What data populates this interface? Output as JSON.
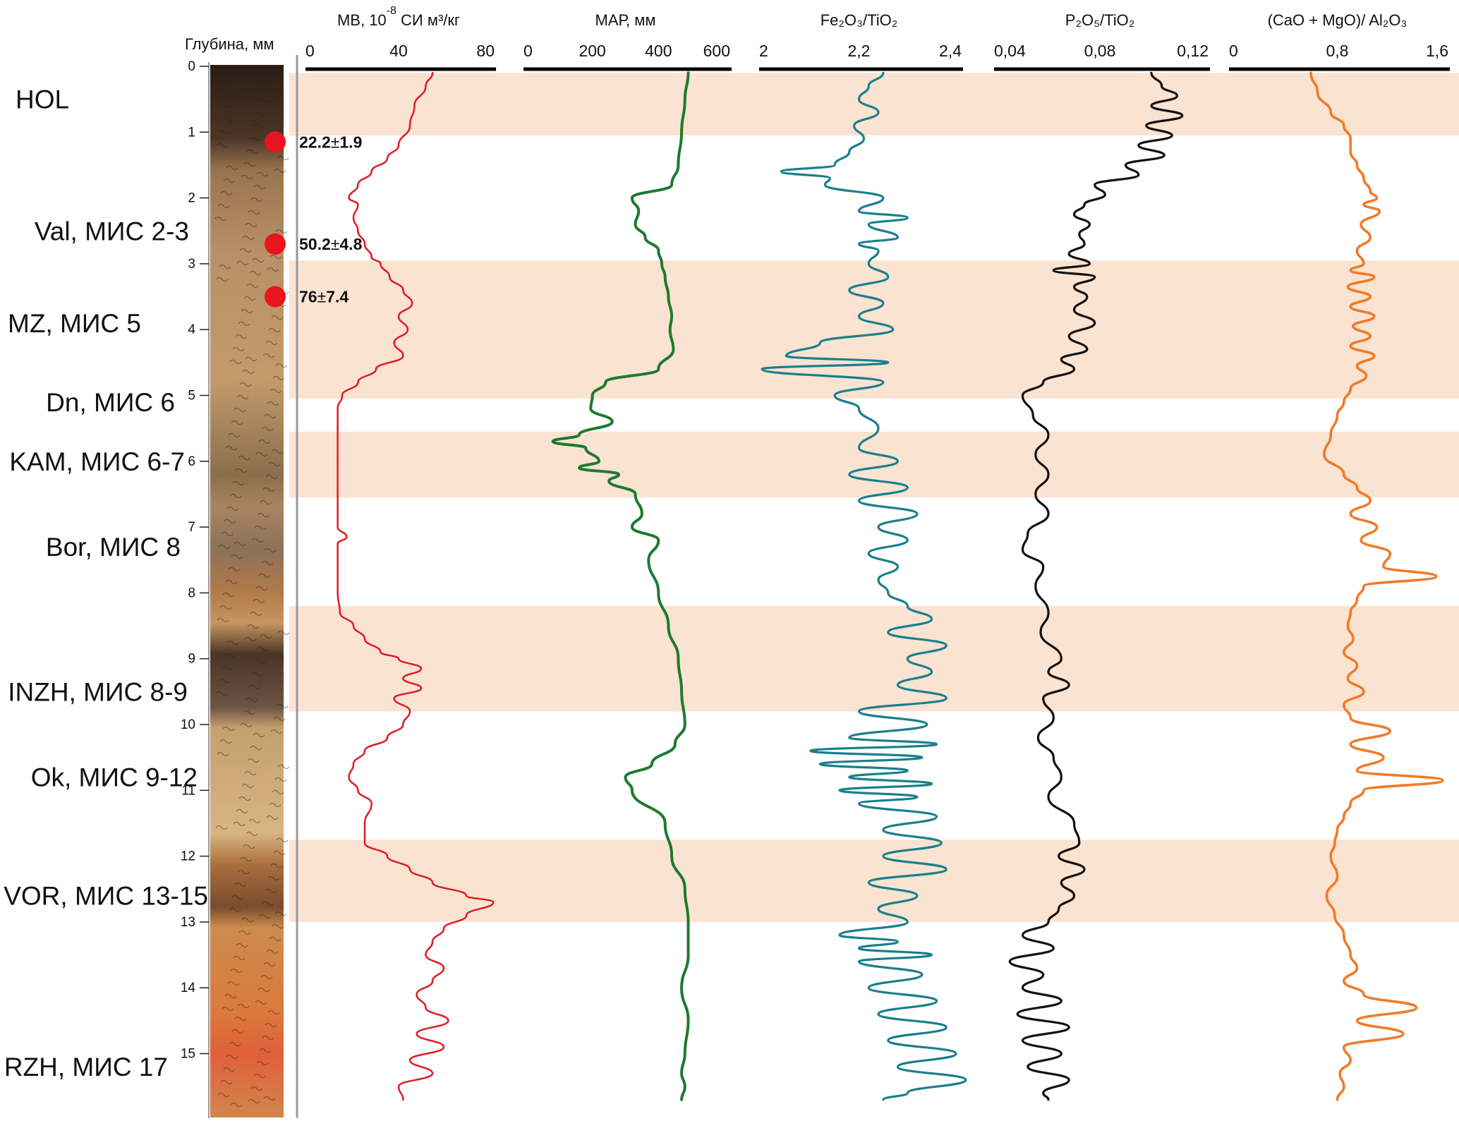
{
  "chart_data": {
    "type": "line",
    "title": "",
    "depth_axis": {
      "label": "Глубина, мм",
      "ticks": [
        "0",
        "1",
        "2",
        "3",
        "4",
        "5",
        "6",
        "7",
        "8",
        "9",
        "10",
        "11",
        "12",
        "13",
        "14",
        "15"
      ],
      "range": [
        0,
        15.8
      ]
    },
    "stages": [
      {
        "label": "HOL",
        "depth": 0.5
      },
      {
        "label": "Val, МИС 2-3",
        "depth": 2.5
      },
      {
        "label": "MZ, МИС 5",
        "depth": 3.9
      },
      {
        "label": "Dn, МИС 6",
        "depth": 5.1
      },
      {
        "label": "KAM, МИС 6-7",
        "depth": 6.0
      },
      {
        "label": "Bor, МИС 8",
        "depth": 7.3
      },
      {
        "label": "INZH, МИС 8-9",
        "depth": 9.5
      },
      {
        "label": "Ok, МИС 9-12",
        "depth": 10.8
      },
      {
        "label": "VOR, МИС 13-15",
        "depth": 12.6
      },
      {
        "label": "RZH, МИС 17",
        "depth": 15.2
      }
    ],
    "shaded_depth_bands": [
      [
        0.1,
        1.05
      ],
      [
        2.95,
        5.05
      ],
      [
        5.55,
        6.55
      ],
      [
        8.2,
        9.8
      ],
      [
        11.75,
        13.0
      ]
    ],
    "ages": [
      {
        "value": "22.2",
        "error": "1.9",
        "pm": "±",
        "depth": 1.15
      },
      {
        "value": "50.2",
        "error": "4.8",
        "pm": "±",
        "depth": 2.7
      },
      {
        "value": "76",
        "error": "7.4",
        "pm": "±",
        "depth": 3.5
      }
    ],
    "series": [
      {
        "name": "MB",
        "title_main": "МВ, 10",
        "title_sup": "-8",
        "title_rest": " СИ м³/кг",
        "color": "#e01b24",
        "xlim": [
          0,
          80
        ],
        "tick_labels": [
          "0",
          "40",
          "80"
        ],
        "tick_values": [
          0,
          40,
          80
        ],
        "depth": [
          0.1,
          0.3,
          0.6,
          0.9,
          1.2,
          1.4,
          1.6,
          1.8,
          2.0,
          2.1,
          2.3,
          2.5,
          2.7,
          2.9,
          3.0,
          3.2,
          3.4,
          3.6,
          3.8,
          4.0,
          4.2,
          4.4,
          4.6,
          4.8,
          5.0,
          5.2,
          5.5,
          6.0,
          6.5,
          7.0,
          7.15,
          7.25,
          7.5,
          8.0,
          8.3,
          8.5,
          8.7,
          8.9,
          9.0,
          9.15,
          9.3,
          9.45,
          9.6,
          9.8,
          10.0,
          10.2,
          10.4,
          10.6,
          10.8,
          11.0,
          11.2,
          11.5,
          11.8,
          12.0,
          12.2,
          12.4,
          12.6,
          12.7,
          12.9,
          13.1,
          13.3,
          13.5,
          13.7,
          13.9,
          14.1,
          14.3,
          14.5,
          14.7,
          14.9,
          15.1,
          15.3,
          15.5,
          15.7
        ],
        "values": [
          55,
          52,
          47,
          45,
          40,
          35,
          28,
          22,
          18,
          22,
          20,
          22,
          25,
          28,
          32,
          36,
          42,
          46,
          40,
          44,
          38,
          42,
          30,
          22,
          15,
          13,
          13,
          13,
          13,
          13,
          17,
          13,
          13,
          13,
          14,
          20,
          25,
          32,
          40,
          50,
          42,
          50,
          38,
          45,
          42,
          35,
          25,
          20,
          18,
          22,
          28,
          25,
          25,
          35,
          45,
          55,
          70,
          82,
          70,
          60,
          55,
          52,
          60,
          55,
          48,
          52,
          62,
          48,
          60,
          45,
          55,
          40,
          42
        ]
      },
      {
        "name": "MAP",
        "title_main": "МАР, мм",
        "color": "#1d7a2e",
        "xlim": [
          0,
          600
        ],
        "tick_labels": [
          "0",
          "200",
          "400",
          "600"
        ],
        "tick_values": [
          0,
          200,
          400,
          600
        ],
        "depth": [
          0.1,
          0.5,
          1.0,
          1.5,
          1.8,
          2.0,
          2.2,
          2.4,
          2.6,
          2.8,
          3.0,
          3.2,
          3.5,
          3.8,
          4.0,
          4.3,
          4.6,
          4.8,
          5.0,
          5.2,
          5.4,
          5.6,
          5.7,
          5.8,
          6.0,
          6.1,
          6.2,
          6.3,
          6.5,
          6.8,
          7.0,
          7.2,
          7.5,
          8.0,
          8.5,
          9.0,
          9.5,
          10.0,
          10.3,
          10.6,
          10.8,
          11.0,
          11.5,
          12.0,
          12.5,
          13.0,
          13.5,
          14.0,
          14.5,
          15.0,
          15.3,
          15.5,
          15.7
        ],
        "values": [
          490,
          480,
          470,
          460,
          440,
          320,
          340,
          330,
          360,
          400,
          410,
          420,
          430,
          440,
          435,
          445,
          400,
          240,
          200,
          195,
          260,
          160,
          80,
          180,
          220,
          160,
          280,
          250,
          330,
          350,
          320,
          400,
          370,
          400,
          430,
          460,
          470,
          480,
          450,
          380,
          300,
          320,
          420,
          440,
          480,
          490,
          490,
          470,
          490,
          480,
          470,
          480,
          470
        ]
      },
      {
        "name": "Fe2O3/TiO2",
        "title_main": "Fe₂O₃/TiO₂",
        "color": "#1a7f8c",
        "xlim": [
          2.0,
          2.4
        ],
        "tick_labels": [
          "2",
          "2,2",
          "2,4"
        ],
        "tick_values": [
          2.0,
          2.2,
          2.4
        ],
        "depth": [
          0.1,
          0.3,
          0.5,
          0.7,
          0.9,
          1.1,
          1.3,
          1.5,
          1.6,
          1.7,
          1.8,
          2.0,
          2.2,
          2.3,
          2.4,
          2.6,
          2.7,
          2.8,
          3.0,
          3.2,
          3.4,
          3.6,
          3.8,
          4.0,
          4.2,
          4.4,
          4.5,
          4.6,
          4.8,
          5.0,
          5.2,
          5.5,
          5.8,
          6.0,
          6.2,
          6.4,
          6.6,
          6.8,
          7.0,
          7.2,
          7.4,
          7.6,
          7.8,
          8.0,
          8.2,
          8.4,
          8.6,
          8.8,
          9.0,
          9.2,
          9.4,
          9.6,
          9.8,
          10.0,
          10.2,
          10.3,
          10.4,
          10.5,
          10.6,
          10.7,
          10.8,
          10.9,
          11.0,
          11.1,
          11.2,
          11.4,
          11.6,
          11.8,
          12.0,
          12.2,
          12.4,
          12.6,
          12.8,
          13.0,
          13.2,
          13.3,
          13.4,
          13.5,
          13.6,
          13.8,
          14.0,
          14.2,
          14.4,
          14.6,
          14.8,
          15.0,
          15.2,
          15.4,
          15.6,
          15.7
        ],
        "values": [
          2.25,
          2.22,
          2.2,
          2.24,
          2.19,
          2.21,
          2.18,
          2.15,
          2.04,
          2.14,
          2.13,
          2.25,
          2.2,
          2.3,
          2.22,
          2.28,
          2.2,
          2.24,
          2.22,
          2.26,
          2.18,
          2.25,
          2.2,
          2.27,
          2.12,
          2.05,
          2.26,
          2.0,
          2.25,
          2.15,
          2.2,
          2.24,
          2.2,
          2.28,
          2.18,
          2.3,
          2.2,
          2.32,
          2.24,
          2.3,
          2.22,
          2.28,
          2.24,
          2.26,
          2.3,
          2.35,
          2.26,
          2.38,
          2.3,
          2.35,
          2.28,
          2.38,
          2.2,
          2.34,
          2.18,
          2.36,
          2.1,
          2.33,
          2.12,
          2.3,
          2.18,
          2.35,
          2.16,
          2.32,
          2.2,
          2.36,
          2.25,
          2.37,
          2.25,
          2.38,
          2.22,
          2.32,
          2.24,
          2.3,
          2.16,
          2.28,
          2.2,
          2.35,
          2.2,
          2.33,
          2.22,
          2.36,
          2.24,
          2.38,
          2.26,
          2.4,
          2.28,
          2.42,
          2.3,
          2.25
        ]
      },
      {
        "name": "P2O5/TiO2",
        "title_main": "P₂O₅/TiO₂",
        "color": "#111111",
        "xlim": [
          0.04,
          0.12
        ],
        "tick_labels": [
          "0,04",
          "0,08",
          "0,12"
        ],
        "tick_values": [
          0.04,
          0.08,
          0.12
        ],
        "depth": [
          0.1,
          0.3,
          0.45,
          0.6,
          0.75,
          0.9,
          1.05,
          1.2,
          1.35,
          1.5,
          1.65,
          1.8,
          1.95,
          2.1,
          2.25,
          2.4,
          2.55,
          2.7,
          2.85,
          3.0,
          3.1,
          3.2,
          3.35,
          3.5,
          3.7,
          3.9,
          4.1,
          4.3,
          4.45,
          4.6,
          4.8,
          5.0,
          5.3,
          5.6,
          5.9,
          6.2,
          6.5,
          6.8,
          7.1,
          7.35,
          7.6,
          7.9,
          8.3,
          8.6,
          9.0,
          9.2,
          9.4,
          9.6,
          9.9,
          10.2,
          10.5,
          10.8,
          11.1,
          11.5,
          11.8,
          12.0,
          12.2,
          12.4,
          12.6,
          12.8,
          13.0,
          13.2,
          13.4,
          13.6,
          13.8,
          14.0,
          14.2,
          14.4,
          14.6,
          14.8,
          15.0,
          15.2,
          15.4,
          15.6,
          15.7
        ],
        "values": [
          0.1,
          0.104,
          0.11,
          0.1,
          0.112,
          0.098,
          0.108,
          0.095,
          0.105,
          0.09,
          0.095,
          0.078,
          0.082,
          0.074,
          0.07,
          0.076,
          0.072,
          0.074,
          0.068,
          0.076,
          0.062,
          0.078,
          0.07,
          0.075,
          0.07,
          0.078,
          0.068,
          0.075,
          0.065,
          0.07,
          0.058,
          0.05,
          0.054,
          0.06,
          0.055,
          0.06,
          0.055,
          0.06,
          0.052,
          0.05,
          0.058,
          0.055,
          0.06,
          0.057,
          0.065,
          0.06,
          0.068,
          0.058,
          0.062,
          0.056,
          0.062,
          0.065,
          0.06,
          0.07,
          0.072,
          0.064,
          0.074,
          0.065,
          0.07,
          0.064,
          0.06,
          0.05,
          0.062,
          0.045,
          0.058,
          0.05,
          0.065,
          0.048,
          0.068,
          0.05,
          0.065,
          0.052,
          0.068,
          0.058,
          0.06
        ]
      },
      {
        "name": "(CaO + MgO)/ Al2O3",
        "title_main": "(CaO + MgO)/ Al₂O₃",
        "color": "#f07b2a",
        "xlim": [
          0,
          1.6
        ],
        "tick_labels": [
          "0",
          "0,8",
          "1,6"
        ],
        "tick_values": [
          0,
          0.8,
          1.6
        ],
        "depth": [
          0.1,
          0.4,
          0.7,
          0.9,
          1.1,
          1.3,
          1.5,
          1.7,
          1.9,
          2.0,
          2.1,
          2.2,
          2.4,
          2.6,
          2.8,
          3.0,
          3.1,
          3.2,
          3.35,
          3.5,
          3.65,
          3.8,
          3.95,
          4.1,
          4.25,
          4.4,
          4.55,
          4.7,
          4.9,
          5.1,
          5.3,
          5.6,
          5.9,
          6.2,
          6.4,
          6.6,
          6.8,
          7.0,
          7.2,
          7.4,
          7.6,
          7.75,
          7.9,
          8.1,
          8.3,
          8.5,
          8.7,
          8.9,
          9.1,
          9.3,
          9.5,
          9.7,
          9.9,
          10.1,
          10.3,
          10.5,
          10.7,
          10.85,
          11.0,
          11.2,
          11.4,
          11.6,
          11.8,
          12.0,
          12.3,
          12.6,
          12.9,
          13.2,
          13.5,
          13.7,
          13.9,
          14.1,
          14.3,
          14.5,
          14.7,
          14.9,
          15.1,
          15.3,
          15.5,
          15.7
        ],
        "values": [
          0.6,
          0.65,
          0.75,
          0.85,
          0.9,
          0.9,
          0.95,
          1.0,
          1.05,
          1.1,
          1.0,
          1.12,
          0.98,
          1.05,
          0.95,
          1.0,
          0.9,
          1.08,
          0.88,
          1.05,
          0.9,
          1.08,
          0.92,
          1.05,
          0.9,
          1.08,
          0.95,
          1.02,
          0.9,
          0.85,
          0.8,
          0.75,
          0.7,
          0.85,
          0.95,
          1.05,
          0.9,
          1.1,
          0.98,
          1.2,
          1.15,
          1.55,
          1.0,
          0.95,
          0.9,
          0.88,
          0.92,
          0.85,
          0.95,
          0.88,
          1.0,
          0.85,
          0.9,
          1.2,
          0.9,
          1.15,
          0.95,
          1.6,
          1.0,
          0.9,
          0.85,
          0.8,
          0.78,
          0.75,
          0.8,
          0.72,
          0.78,
          0.85,
          0.9,
          0.95,
          0.85,
          1.0,
          1.4,
          0.95,
          1.3,
          0.85,
          0.9,
          0.82,
          0.85,
          0.8
        ]
      }
    ]
  }
}
